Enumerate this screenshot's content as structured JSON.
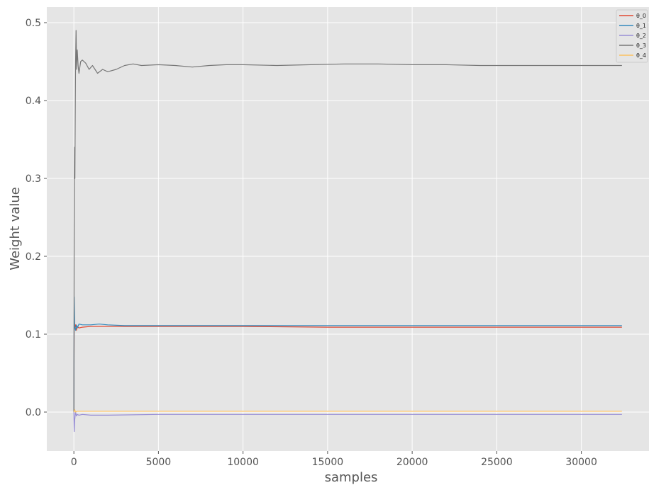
{
  "chart_data": {
    "type": "line",
    "title": "",
    "xlabel": "samples",
    "ylabel": "Weight value",
    "xlim": [
      -1600,
      34000
    ],
    "ylim": [
      -0.05,
      0.52
    ],
    "xticks": [
      0,
      5000,
      10000,
      15000,
      20000,
      25000,
      30000
    ],
    "yticks": [
      0.0,
      0.1,
      0.2,
      0.3,
      0.4,
      0.5
    ],
    "grid": true,
    "legend_position": "top-right",
    "series": [
      {
        "name": "θ_0",
        "color": "#e24a33",
        "x": [
          0,
          20,
          50,
          100,
          150,
          200,
          300,
          500,
          1000,
          1500,
          2000,
          3000,
          5000,
          10000,
          15000,
          20000,
          25000,
          32400
        ],
        "y": [
          0.0,
          0.12,
          0.108,
          0.112,
          0.105,
          0.11,
          0.108,
          0.109,
          0.11,
          0.11,
          0.11,
          0.11,
          0.11,
          0.11,
          0.109,
          0.109,
          0.109,
          0.109
        ]
      },
      {
        "name": "θ_1",
        "color": "#348abd",
        "x": [
          0,
          20,
          50,
          100,
          150,
          200,
          300,
          500,
          1000,
          1500,
          2000,
          3000,
          5000,
          7000,
          10000,
          15000,
          20000,
          25000,
          32400
        ],
        "y": [
          0.0,
          0.148,
          0.11,
          0.105,
          0.112,
          0.108,
          0.113,
          0.112,
          0.112,
          0.113,
          0.112,
          0.111,
          0.111,
          0.111,
          0.111,
          0.111,
          0.111,
          0.111,
          0.111
        ]
      },
      {
        "name": "θ_2",
        "color": "#988ed5",
        "x": [
          0,
          20,
          50,
          100,
          150,
          200,
          300,
          500,
          1000,
          2000,
          5000,
          10000,
          20000,
          32400
        ],
        "y": [
          0.0,
          -0.025,
          -0.01,
          0.0,
          -0.005,
          -0.003,
          -0.004,
          -0.003,
          -0.004,
          -0.004,
          -0.003,
          -0.003,
          -0.003,
          -0.003
        ]
      },
      {
        "name": "θ_3",
        "color": "#777777",
        "x": [
          0,
          20,
          40,
          60,
          80,
          100,
          130,
          160,
          200,
          250,
          300,
          400,
          500,
          700,
          900,
          1100,
          1400,
          1700,
          2000,
          2500,
          3000,
          3500,
          4000,
          5000,
          6000,
          7000,
          8000,
          9000,
          10000,
          12000,
          14000,
          16000,
          18000,
          20000,
          22000,
          24000,
          26000,
          28000,
          30000,
          32400
        ],
        "y": [
          0.0,
          0.28,
          0.34,
          0.3,
          0.38,
          0.45,
          0.49,
          0.44,
          0.465,
          0.445,
          0.435,
          0.45,
          0.452,
          0.448,
          0.44,
          0.445,
          0.435,
          0.44,
          0.437,
          0.44,
          0.445,
          0.447,
          0.445,
          0.446,
          0.445,
          0.443,
          0.445,
          0.446,
          0.446,
          0.445,
          0.446,
          0.447,
          0.447,
          0.446,
          0.446,
          0.445,
          0.445,
          0.445,
          0.445,
          0.445
        ]
      },
      {
        "name": "θ_4",
        "color": "#fbc15e",
        "x": [
          0,
          50,
          100,
          200,
          500,
          1000,
          5000,
          10000,
          20000,
          32400
        ],
        "y": [
          0.0,
          0.003,
          0.0,
          0.001,
          0.001,
          0.001,
          0.001,
          0.001,
          0.001,
          0.001
        ]
      }
    ]
  }
}
